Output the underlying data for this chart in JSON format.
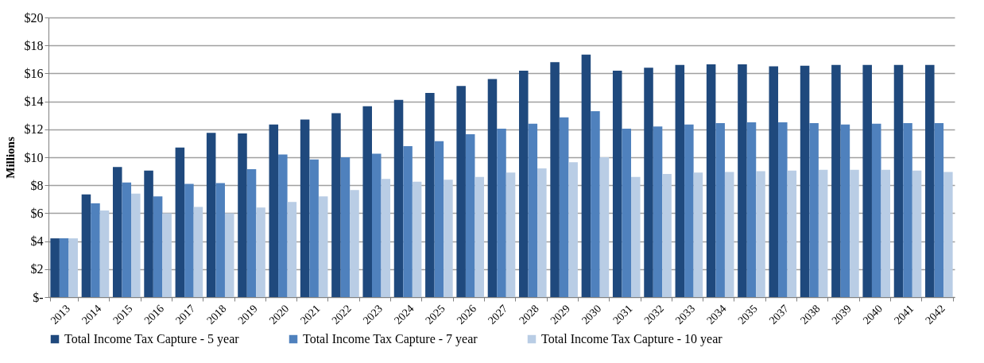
{
  "chart_data": {
    "type": "bar",
    "ylabel": "Millions",
    "categories": [
      "2013",
      "2014",
      "2015",
      "2016",
      "2017",
      "2018",
      "2019",
      "2020",
      "2021",
      "2022",
      "2023",
      "2024",
      "2025",
      "2026",
      "2027",
      "2028",
      "2029",
      "2030",
      "2031",
      "2032",
      "2033",
      "2034",
      "2035",
      "2037",
      "2038",
      "2039",
      "2040",
      "2041",
      "2042"
    ],
    "series": [
      {
        "name": "Total Income Tax Capture - 5 year",
        "color": "#1f497d",
        "values": [
          4.2,
          7.35,
          9.3,
          9.05,
          10.7,
          11.75,
          11.7,
          12.35,
          12.7,
          13.15,
          13.65,
          14.1,
          14.6,
          15.1,
          15.6,
          16.2,
          16.8,
          17.35,
          16.2,
          16.4,
          16.6,
          16.65,
          16.65,
          16.5,
          16.55,
          16.6,
          16.6,
          16.6,
          16.6
        ]
      },
      {
        "name": "Total Income Tax Capture - 7 year",
        "color": "#4f81bd",
        "values": [
          4.2,
          6.7,
          8.2,
          7.2,
          8.1,
          8.15,
          9.15,
          10.2,
          9.85,
          10.0,
          10.25,
          10.8,
          11.15,
          11.65,
          12.05,
          12.4,
          12.85,
          13.3,
          12.05,
          12.2,
          12.35,
          12.45,
          12.5,
          12.5,
          12.45,
          12.35,
          12.4,
          12.45,
          12.45
        ]
      },
      {
        "name": "Total Income Tax Capture - 10 year",
        "color": "#b9cde5",
        "values": [
          4.2,
          6.2,
          7.4,
          6.0,
          6.45,
          6.0,
          6.4,
          6.8,
          7.2,
          7.65,
          8.45,
          8.25,
          8.4,
          8.6,
          8.9,
          9.2,
          9.65,
          10.0,
          8.6,
          8.8,
          8.9,
          8.95,
          9.0,
          9.05,
          9.1,
          9.1,
          9.1,
          9.05,
          8.95
        ]
      }
    ],
    "ylim": [
      0,
      20
    ],
    "yticks": [
      {
        "value": 0,
        "label": "$-"
      },
      {
        "value": 2,
        "label": "$2"
      },
      {
        "value": 4,
        "label": "$4"
      },
      {
        "value": 6,
        "label": "$6"
      },
      {
        "value": 8,
        "label": "$8"
      },
      {
        "value": 10,
        "label": "$10"
      },
      {
        "value": 12,
        "label": "$12"
      },
      {
        "value": 14,
        "label": "$14"
      },
      {
        "value": 16,
        "label": "$16"
      },
      {
        "value": 18,
        "label": "$18"
      },
      {
        "value": 20,
        "label": "$20"
      }
    ],
    "grid": "y",
    "legend": "bottom"
  }
}
